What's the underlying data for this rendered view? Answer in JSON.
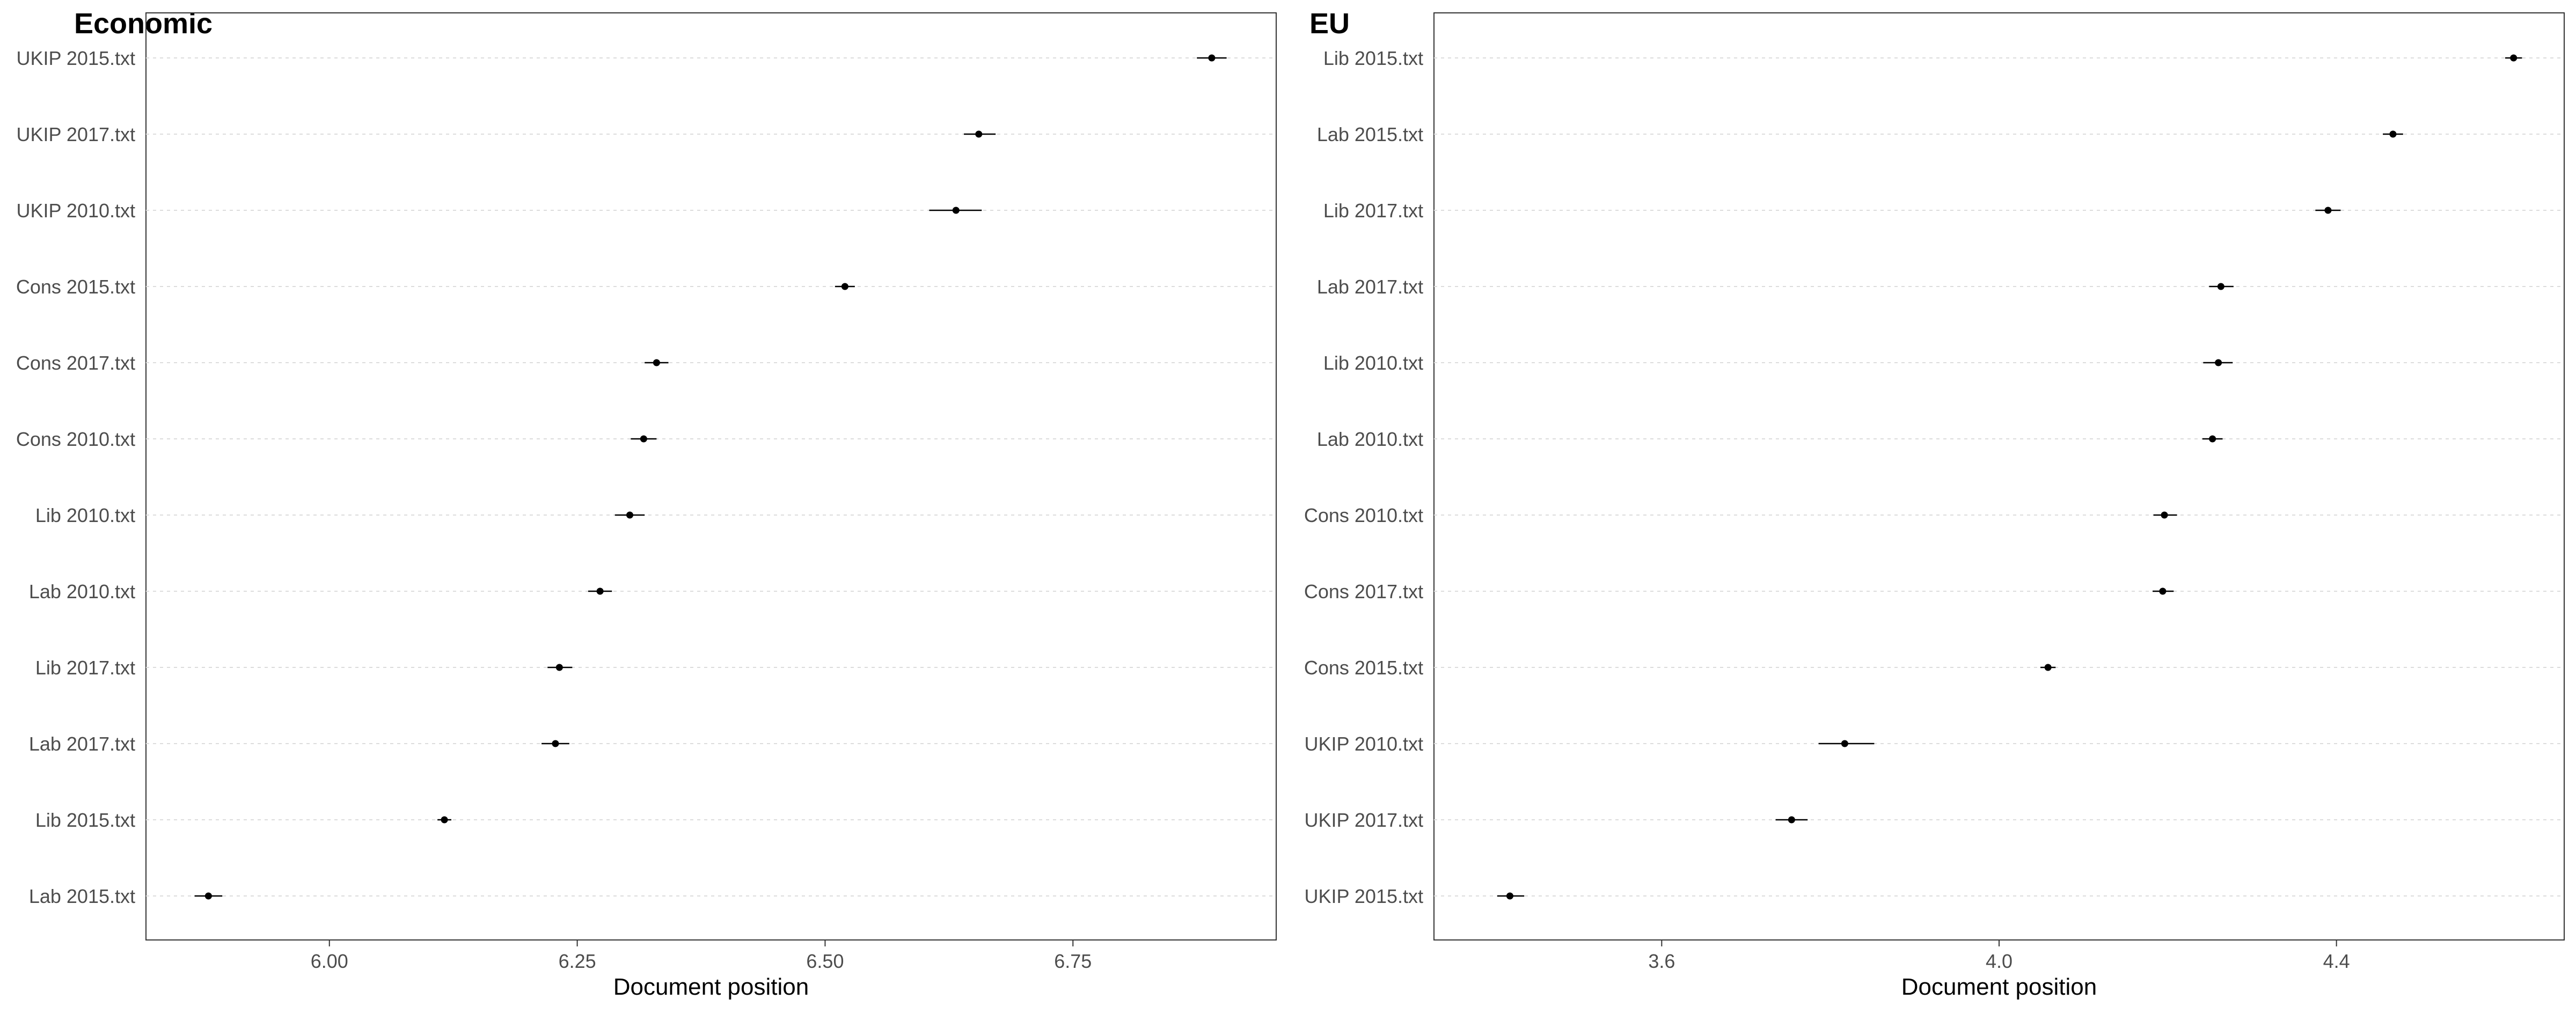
{
  "chart_data": [
    {
      "type": "scatter",
      "title": "Economic",
      "xlabel": "Document position",
      "xlim": [
        5.815,
        6.955
      ],
      "xticks": [
        "6.00",
        "6.25",
        "6.50",
        "6.75"
      ],
      "xtick_values": [
        6.0,
        6.25,
        6.5,
        6.75
      ],
      "grid": "horizontal dotted",
      "categories": [
        "UKIP 2015.txt",
        "UKIP 2017.txt",
        "UKIP 2010.txt",
        "Cons 2015.txt",
        "Cons 2017.txt",
        "Cons 2010.txt",
        "Lib 2010.txt",
        "Lab 2010.txt",
        "Lib 2017.txt",
        "Lab 2017.txt",
        "Lib 2015.txt",
        "Lab 2015.txt"
      ],
      "points": [
        {
          "label": "UKIP 2015.txt",
          "value": 6.89,
          "lower": 6.875,
          "upper": 6.905
        },
        {
          "label": "UKIP 2017.txt",
          "value": 6.655,
          "lower": 6.64,
          "upper": 6.672
        },
        {
          "label": "UKIP 2010.txt",
          "value": 6.632,
          "lower": 6.605,
          "upper": 6.658
        },
        {
          "label": "Cons 2015.txt",
          "value": 6.52,
          "lower": 6.51,
          "upper": 6.53
        },
        {
          "label": "Cons 2017.txt",
          "value": 6.33,
          "lower": 6.318,
          "upper": 6.342
        },
        {
          "label": "Cons 2010.txt",
          "value": 6.317,
          "lower": 6.304,
          "upper": 6.33
        },
        {
          "label": "Lib 2010.txt",
          "value": 6.303,
          "lower": 6.288,
          "upper": 6.318
        },
        {
          "label": "Lab 2010.txt",
          "value": 6.273,
          "lower": 6.261,
          "upper": 6.285
        },
        {
          "label": "Lib 2017.txt",
          "value": 6.232,
          "lower": 6.22,
          "upper": 6.245
        },
        {
          "label": "Lab 2017.txt",
          "value": 6.228,
          "lower": 6.214,
          "upper": 6.242
        },
        {
          "label": "Lib 2015.txt",
          "value": 6.116,
          "lower": 6.109,
          "upper": 6.123
        },
        {
          "label": "Lab 2015.txt",
          "value": 5.878,
          "lower": 5.864,
          "upper": 5.892
        }
      ]
    },
    {
      "type": "scatter",
      "title": "EU",
      "xlabel": "Document position",
      "xlim": [
        3.33,
        4.67
      ],
      "xticks": [
        "3.6",
        "4.0",
        "4.4"
      ],
      "xtick_values": [
        3.6,
        4.0,
        4.4
      ],
      "grid": "horizontal dotted",
      "categories": [
        "Lib 2015.txt",
        "Lab 2015.txt",
        "Lib 2017.txt",
        "Lab 2017.txt",
        "Lib 2010.txt",
        "Lab 2010.txt",
        "Cons 2010.txt",
        "Cons 2017.txt",
        "Cons 2015.txt",
        "UKIP 2010.txt",
        "UKIP 2017.txt",
        "UKIP 2015.txt"
      ],
      "points": [
        {
          "label": "Lib 2015.txt",
          "value": 4.61,
          "lower": 4.6,
          "upper": 4.62
        },
        {
          "label": "Lab 2015.txt",
          "value": 4.467,
          "lower": 4.455,
          "upper": 4.479
        },
        {
          "label": "Lib 2017.txt",
          "value": 4.39,
          "lower": 4.375,
          "upper": 4.405
        },
        {
          "label": "Lab 2017.txt",
          "value": 4.263,
          "lower": 4.249,
          "upper": 4.278
        },
        {
          "label": "Lib 2010.txt",
          "value": 4.26,
          "lower": 4.242,
          "upper": 4.277
        },
        {
          "label": "Lab 2010.txt",
          "value": 4.253,
          "lower": 4.241,
          "upper": 4.265
        },
        {
          "label": "Cons 2010.txt",
          "value": 4.196,
          "lower": 4.183,
          "upper": 4.211
        },
        {
          "label": "Cons 2017.txt",
          "value": 4.194,
          "lower": 4.182,
          "upper": 4.207
        },
        {
          "label": "Cons 2015.txt",
          "value": 4.058,
          "lower": 4.049,
          "upper": 4.067
        },
        {
          "label": "UKIP 2010.txt",
          "value": 3.817,
          "lower": 3.786,
          "upper": 3.852
        },
        {
          "label": "UKIP 2017.txt",
          "value": 3.754,
          "lower": 3.735,
          "upper": 3.773
        },
        {
          "label": "UKIP 2015.txt",
          "value": 3.42,
          "lower": 3.405,
          "upper": 3.437
        }
      ]
    }
  ]
}
